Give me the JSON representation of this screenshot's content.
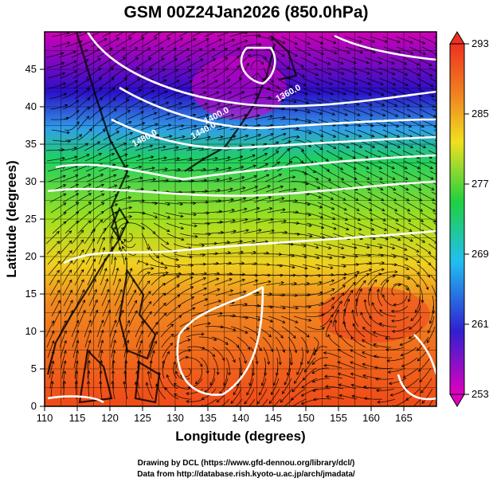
{
  "chart_data": {
    "type": "heatmap",
    "title": "GSM 00Z24Jan2026 (850.0hPa)",
    "xlabel": "Longitude (degrees)",
    "ylabel": "Latitude  (degrees)",
    "xlim": [
      110,
      170
    ],
    "ylim": [
      0,
      50
    ],
    "xticks": [
      "110",
      "115",
      "120",
      "125",
      "130",
      "135",
      "140",
      "145",
      "150",
      "155",
      "160",
      "165"
    ],
    "yticks": [
      "0",
      "5",
      "10",
      "15",
      "20",
      "25",
      "30",
      "35",
      "40",
      "45"
    ],
    "colorbar": {
      "min": 253,
      "max": 293,
      "ticks": [
        "253",
        "261",
        "269",
        "277",
        "285",
        "293"
      ],
      "colors": [
        "#e000c0",
        "#2020d0",
        "#20c0f0",
        "#20d040",
        "#f0e020",
        "#f08020",
        "#f03020"
      ]
    },
    "grid": true,
    "contours": [
      {
        "label": "1360.0",
        "lon": 147.5,
        "lat": 41.5
      },
      {
        "label": "1400.0",
        "lon": 136.5,
        "lat": 38.5
      },
      {
        "label": "1440.0",
        "lon": 134.5,
        "lat": 36.5
      },
      {
        "label": "1480.0",
        "lon": 125.5,
        "lat": 35.5
      }
    ],
    "credits": [
      "Drawing by DCL (https://www.gfd-dennou.org/library/dcl/)",
      "Data from http://database.rish.kyoto-u.ac.jp/arch/jmadata/"
    ]
  }
}
